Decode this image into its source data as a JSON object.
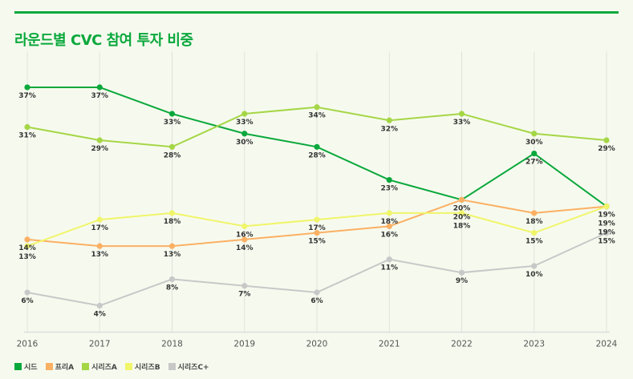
{
  "title": "라운드별 CVC 참여 투자 비중",
  "accent_color": "#0aa83c",
  "chart_data": {
    "type": "line",
    "title": "라운드별 CVC 참여 투자 비중",
    "x": [
      "2016",
      "2017",
      "2018",
      "2019",
      "2020",
      "2021",
      "2022",
      "2023",
      "2024"
    ],
    "ylim": [
      0,
      40
    ],
    "value_suffix": "%",
    "grid": "vertical",
    "legend": "bottom-left",
    "series": [
      {
        "name": "시드",
        "color": "#0aa83c",
        "values": [
          37,
          37,
          33,
          30,
          28,
          23,
          20,
          27,
          19
        ]
      },
      {
        "name": "프리A",
        "color": "#fbb064",
        "values": [
          14,
          13,
          13,
          14,
          15,
          16,
          20,
          18,
          19
        ]
      },
      {
        "name": "시리즈A",
        "color": "#a5d646",
        "values": [
          31,
          29,
          28,
          33,
          34,
          32,
          33,
          30,
          29
        ]
      },
      {
        "name": "시리즈B",
        "color": "#f0f56a",
        "values": [
          13,
          17,
          18,
          16,
          17,
          18,
          18,
          15,
          19
        ]
      },
      {
        "name": "시리즈C+",
        "color": "#c8c8c8",
        "values": [
          6,
          4,
          8,
          7,
          6,
          11,
          9,
          10,
          15
        ]
      }
    ]
  }
}
